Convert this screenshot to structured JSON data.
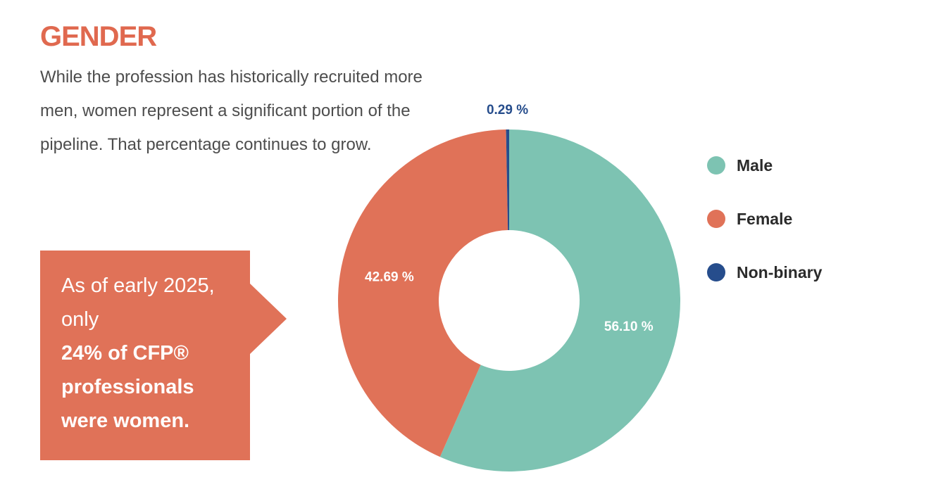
{
  "header": {
    "title": "GENDER",
    "intro": "While the profession has historically recruited more men, women represent a significant portion of the pipeline. That percentage continues to grow."
  },
  "callout": {
    "text_normal": "As of early 2025, only",
    "text_strong_1": "24% of CFP®",
    "text_strong_2": "professionals",
    "text_strong_3": "were women."
  },
  "colors": {
    "accent": "#e0694f",
    "male": "#7dc3b2",
    "female": "#e07258",
    "nonbinary": "#264d8c"
  },
  "chart_data": {
    "type": "pie",
    "donut": true,
    "categories": [
      "Male",
      "Female",
      "Non-binary"
    ],
    "values": [
      56.1,
      42.69,
      0.29
    ],
    "labels": [
      "56.10 %",
      "42.69 %",
      "0.29 %"
    ],
    "legend_position": "right"
  }
}
